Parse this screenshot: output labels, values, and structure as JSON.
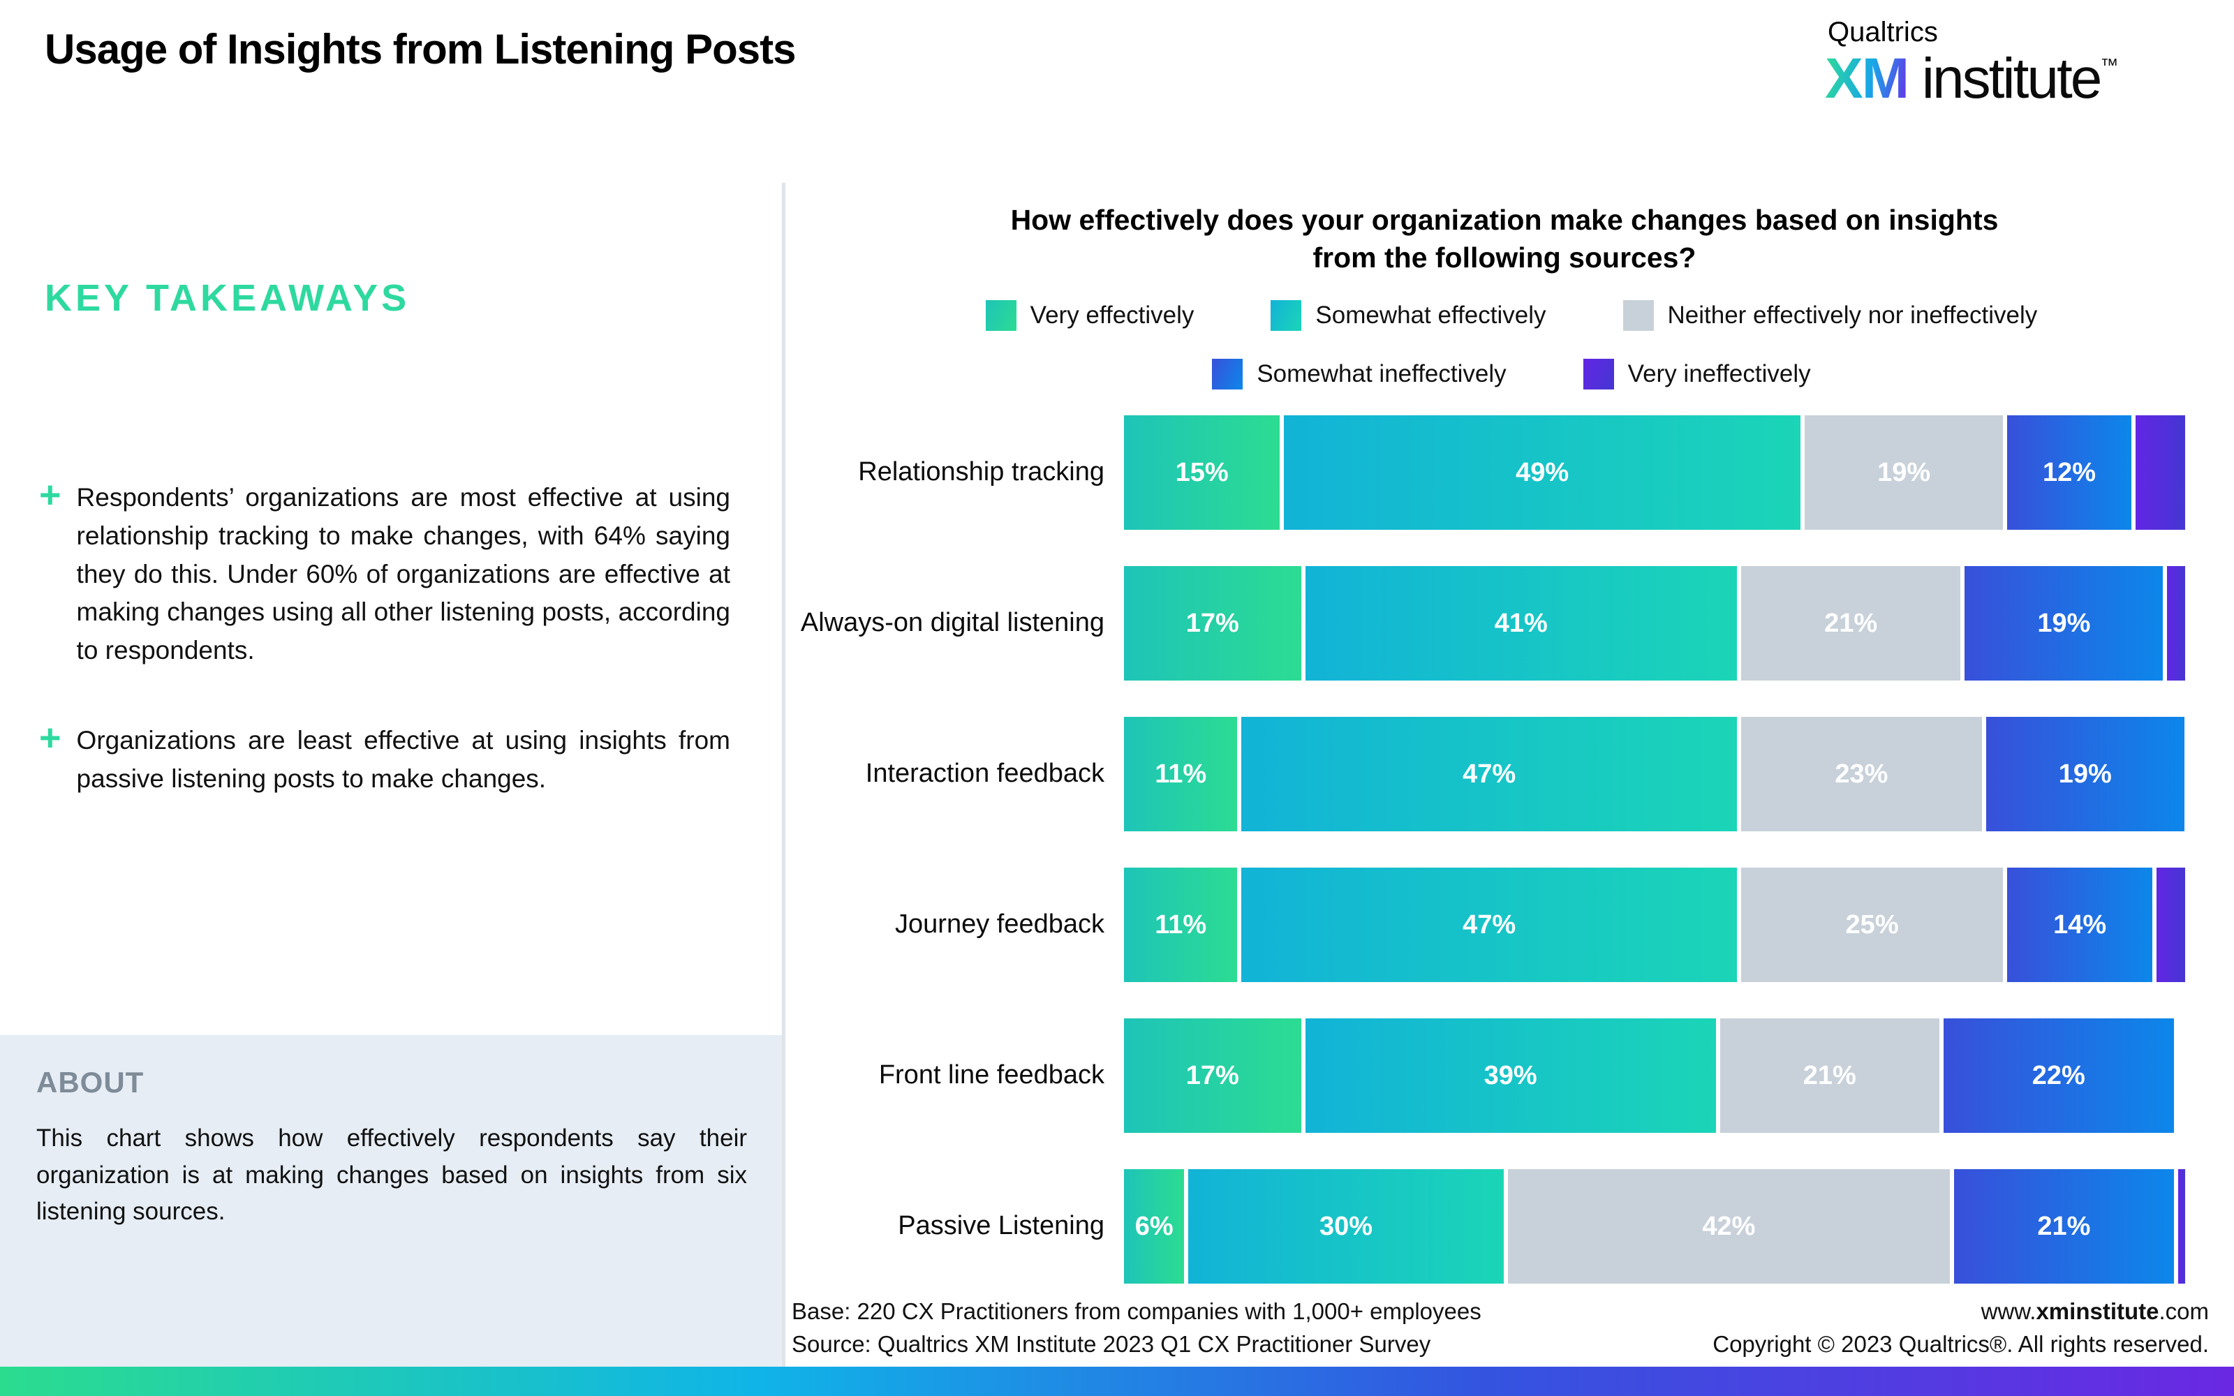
{
  "page": {
    "title": "Usage of Insights from Listening Posts"
  },
  "logo": {
    "company": "Qualtrics",
    "xm": "XM",
    "institute": "institute",
    "tm": "™"
  },
  "key_takeaways": {
    "heading": "KEY TAKEAWAYS",
    "bullet_marker": "+",
    "bullets": [
      "Respondents’ organizations are most effective at using relationship tracking to make changes, with 64% saying they do this. Under 60% of organizations are effective at making changes using all other listening posts, according to respondents.",
      "Organizations are least effective at using insights from passive listening posts to make changes."
    ]
  },
  "about": {
    "heading": "ABOUT",
    "text": "This chart shows how effectively respondents say their organization is at making changes based on insights from six listening sources."
  },
  "chart": {
    "title_line1": "How effectively does your organization make changes based on insights",
    "title_line2": "from the following sources?",
    "legend_rows": [
      [
        0,
        1,
        2
      ],
      [
        3,
        4
      ]
    ]
  },
  "chart_data": {
    "type": "bar",
    "stacked": true,
    "orientation": "horizontal",
    "unit": "%",
    "axis_range": [
      0,
      100
    ],
    "grid": false,
    "label_min_pct": 6,
    "categories": [
      "Relationship tracking",
      "Always-on digital listening",
      "Interaction feedback",
      "Journey feedback",
      "Front line feedback",
      "Passive Listening"
    ],
    "series": [
      {
        "name": "Very effectively",
        "color_from": "#1EC4B8",
        "color_to": "#2CDC92",
        "values": [
          15,
          17,
          11,
          11,
          17,
          6
        ]
      },
      {
        "name": "Somewhat effectively",
        "color_from": "#12B3D7",
        "color_to": "#1BD5B7",
        "values": [
          49,
          41,
          47,
          47,
          39,
          30
        ]
      },
      {
        "name": "Neither effectively nor ineffectively",
        "color_from": "#C8D1DA",
        "color_to": "#C8D1DA",
        "values": [
          19,
          21,
          23,
          25,
          21,
          42
        ]
      },
      {
        "name": "Somewhat ineffectively",
        "color_from": "#3850DA",
        "color_to": "#0C87EA",
        "values": [
          12,
          19,
          19,
          14,
          22,
          21
        ]
      },
      {
        "name": "Very ineffectively",
        "color_from": "#6226E4",
        "color_to": "#4536D2",
        "values": [
          5,
          2,
          0,
          3,
          0,
          1
        ]
      }
    ]
  },
  "footer": {
    "base": "Base: 220 CX Practitioners from companies with 1,000+ employees",
    "source": "Source: Qualtrics XM Institute 2023 Q1 CX Practitioner Survey",
    "url_prefix": "www.",
    "url_bold": "xminstitute",
    "url_suffix": ".com",
    "copyright": "Copyright © 2023 Qualtrics®. All rights reserved."
  }
}
